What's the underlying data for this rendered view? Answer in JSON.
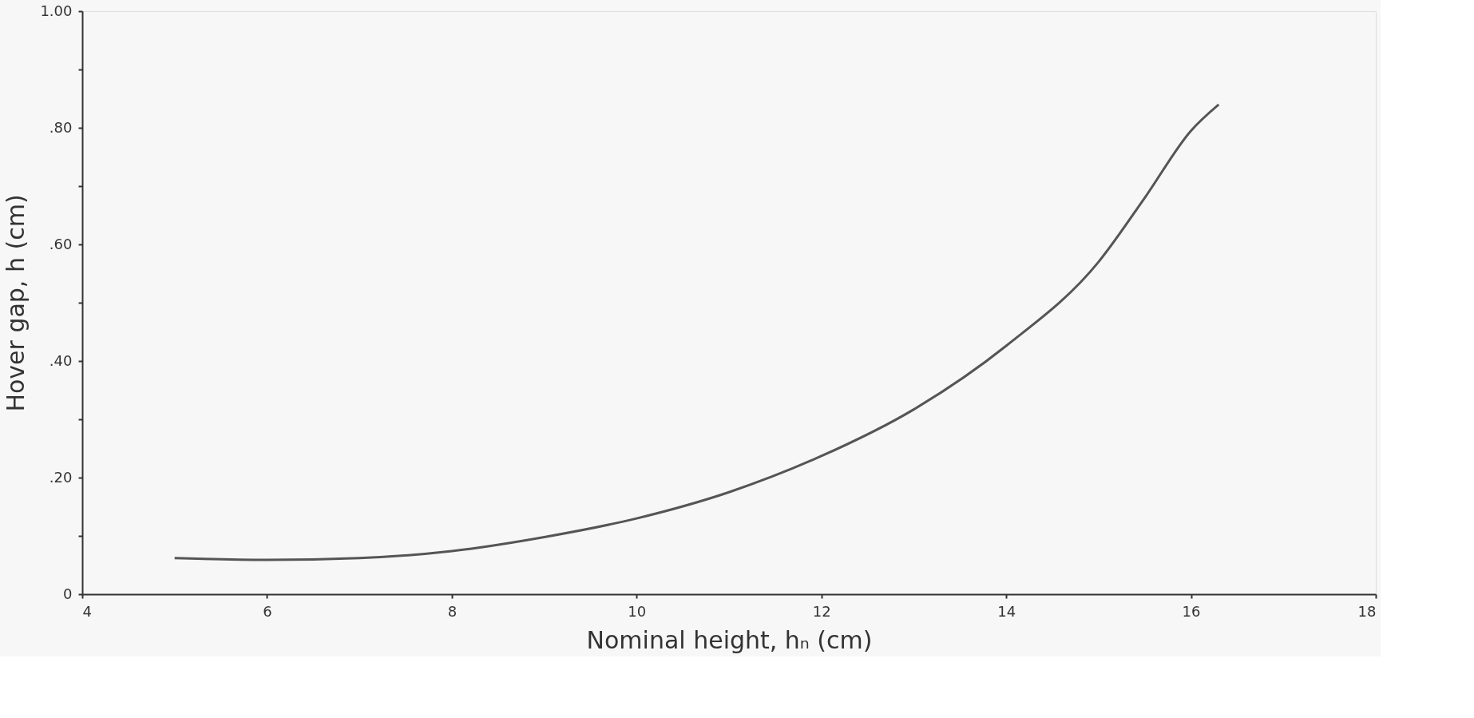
{
  "chart_data": {
    "type": "line",
    "xlabel": "Nominal height, hₙ (cm)",
    "ylabel": "Hover gap, h (cm)",
    "x": [
      5,
      6,
      7,
      8,
      9,
      10,
      11,
      12,
      13,
      14,
      15,
      15.5,
      16,
      16.3
    ],
    "series": [
      {
        "color": "#555555",
        "values": [
          0.062,
          0.059,
          0.062,
          0.074,
          0.098,
          0.13,
          0.175,
          0.237,
          0.317,
          0.426,
          0.57,
          0.68,
          0.795,
          0.84
        ]
      }
    ],
    "xlim": [
      4,
      18
    ],
    "xticks": [
      4,
      6,
      8,
      10,
      12,
      14,
      16,
      18
    ],
    "ylim": [
      0,
      1.0
    ],
    "yticks": [
      0,
      {
        "value": 0.1,
        "label": null
      },
      {
        "value": 0.2,
        "label": ".20"
      },
      {
        "value": 0.3,
        "label": null
      },
      {
        "value": 0.4,
        "label": ".40"
      },
      {
        "value": 0.5,
        "label": null
      },
      {
        "value": 0.6,
        "label": ".60"
      },
      {
        "value": 0.7,
        "label": null
      },
      {
        "value": 0.8,
        "label": ".80"
      },
      {
        "value": 0.9,
        "label": null
      },
      {
        "value": 1.0,
        "label": "1.00"
      }
    ],
    "grid": false,
    "marker": "none",
    "line_style": "solid"
  }
}
